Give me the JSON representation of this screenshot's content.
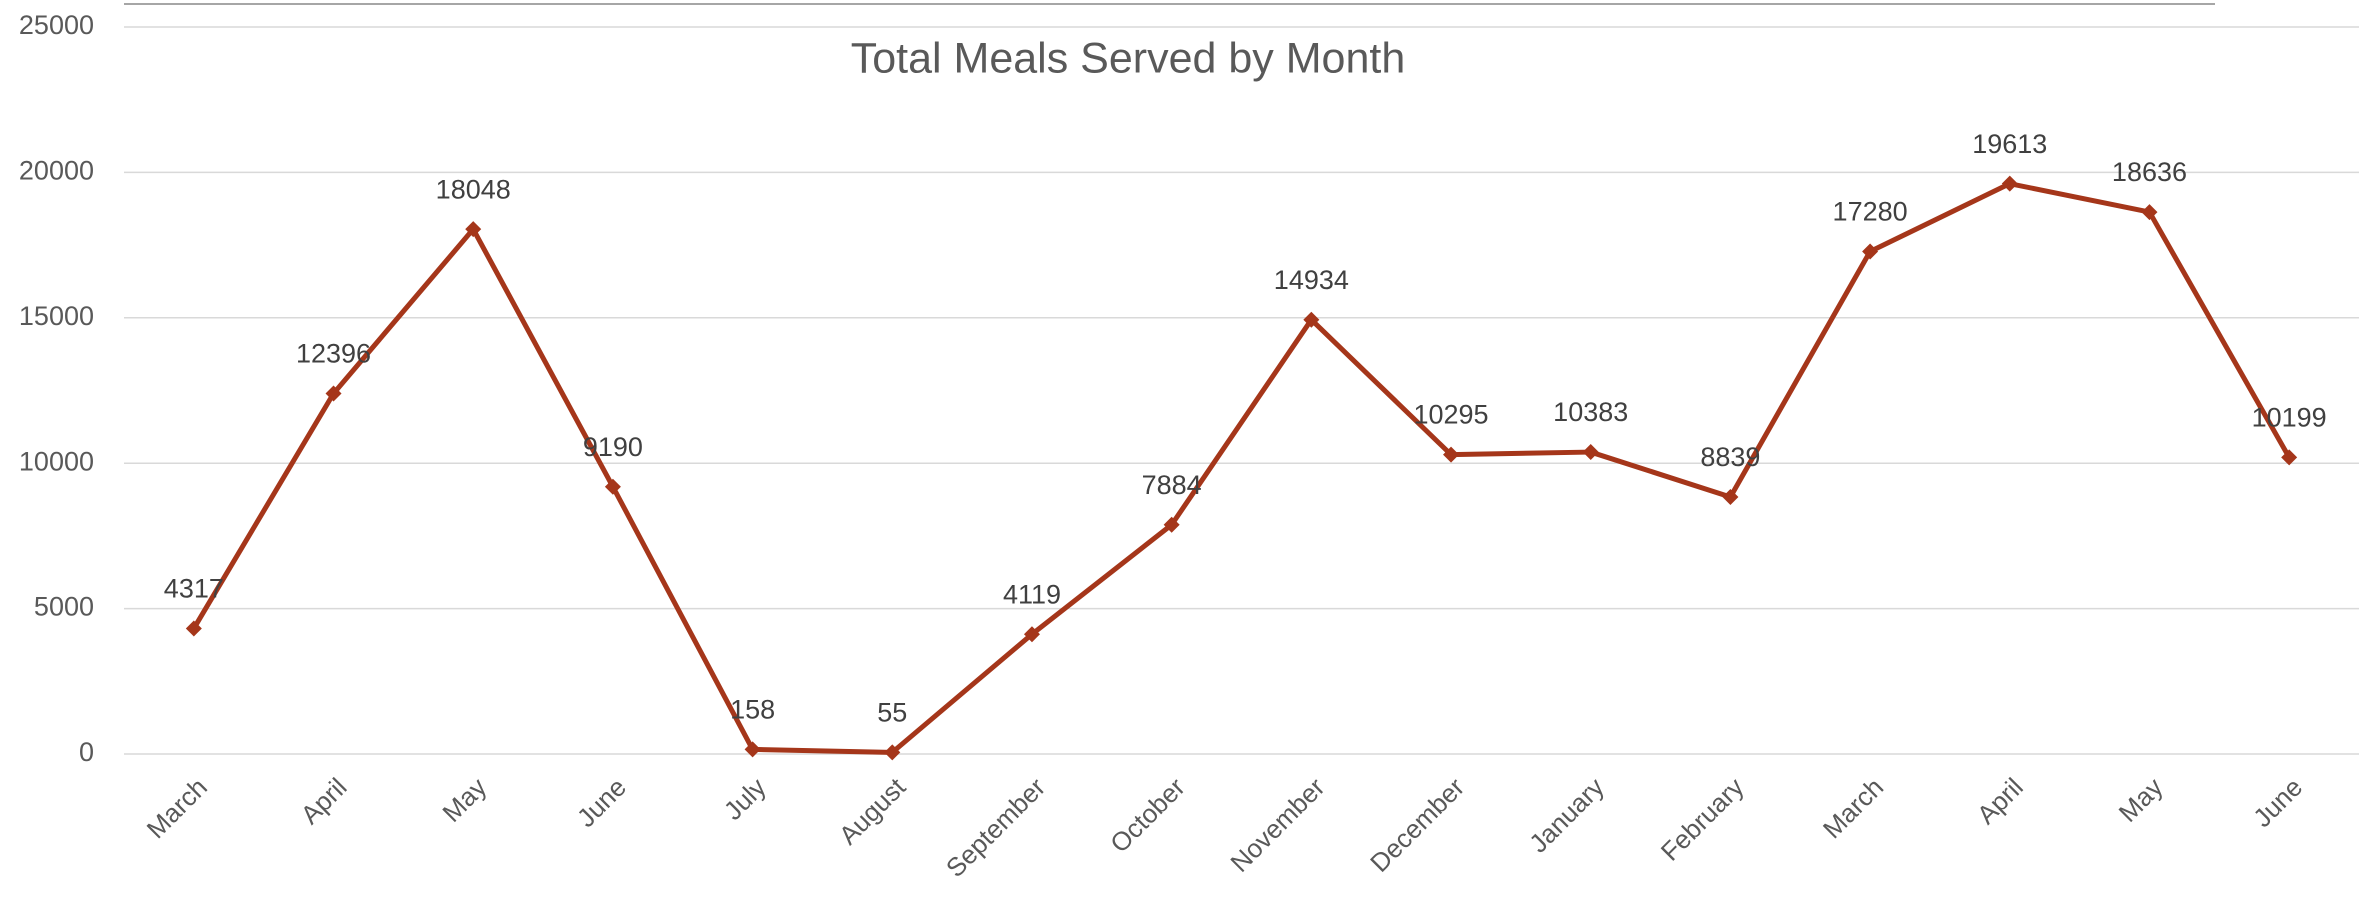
{
  "chart_data": {
    "type": "line",
    "title": "Total Meals Served by Month",
    "categories": [
      "March",
      "April",
      "May",
      "June",
      "July",
      "August",
      "September",
      "October",
      "November",
      "December",
      "January",
      "February",
      "March",
      "April",
      "May",
      "June"
    ],
    "series": [
      {
        "color": "#a5361a",
        "values": [
          4317,
          12396,
          18048,
          9190,
          158,
          55,
          4119,
          7884,
          14934,
          10295,
          10383,
          8839,
          17280,
          19613,
          18636,
          10199
        ]
      }
    ],
    "ylim": [
      0,
      25000
    ],
    "yticks": [
      0,
      5000,
      10000,
      15000,
      20000,
      25000
    ],
    "grid": true
  }
}
